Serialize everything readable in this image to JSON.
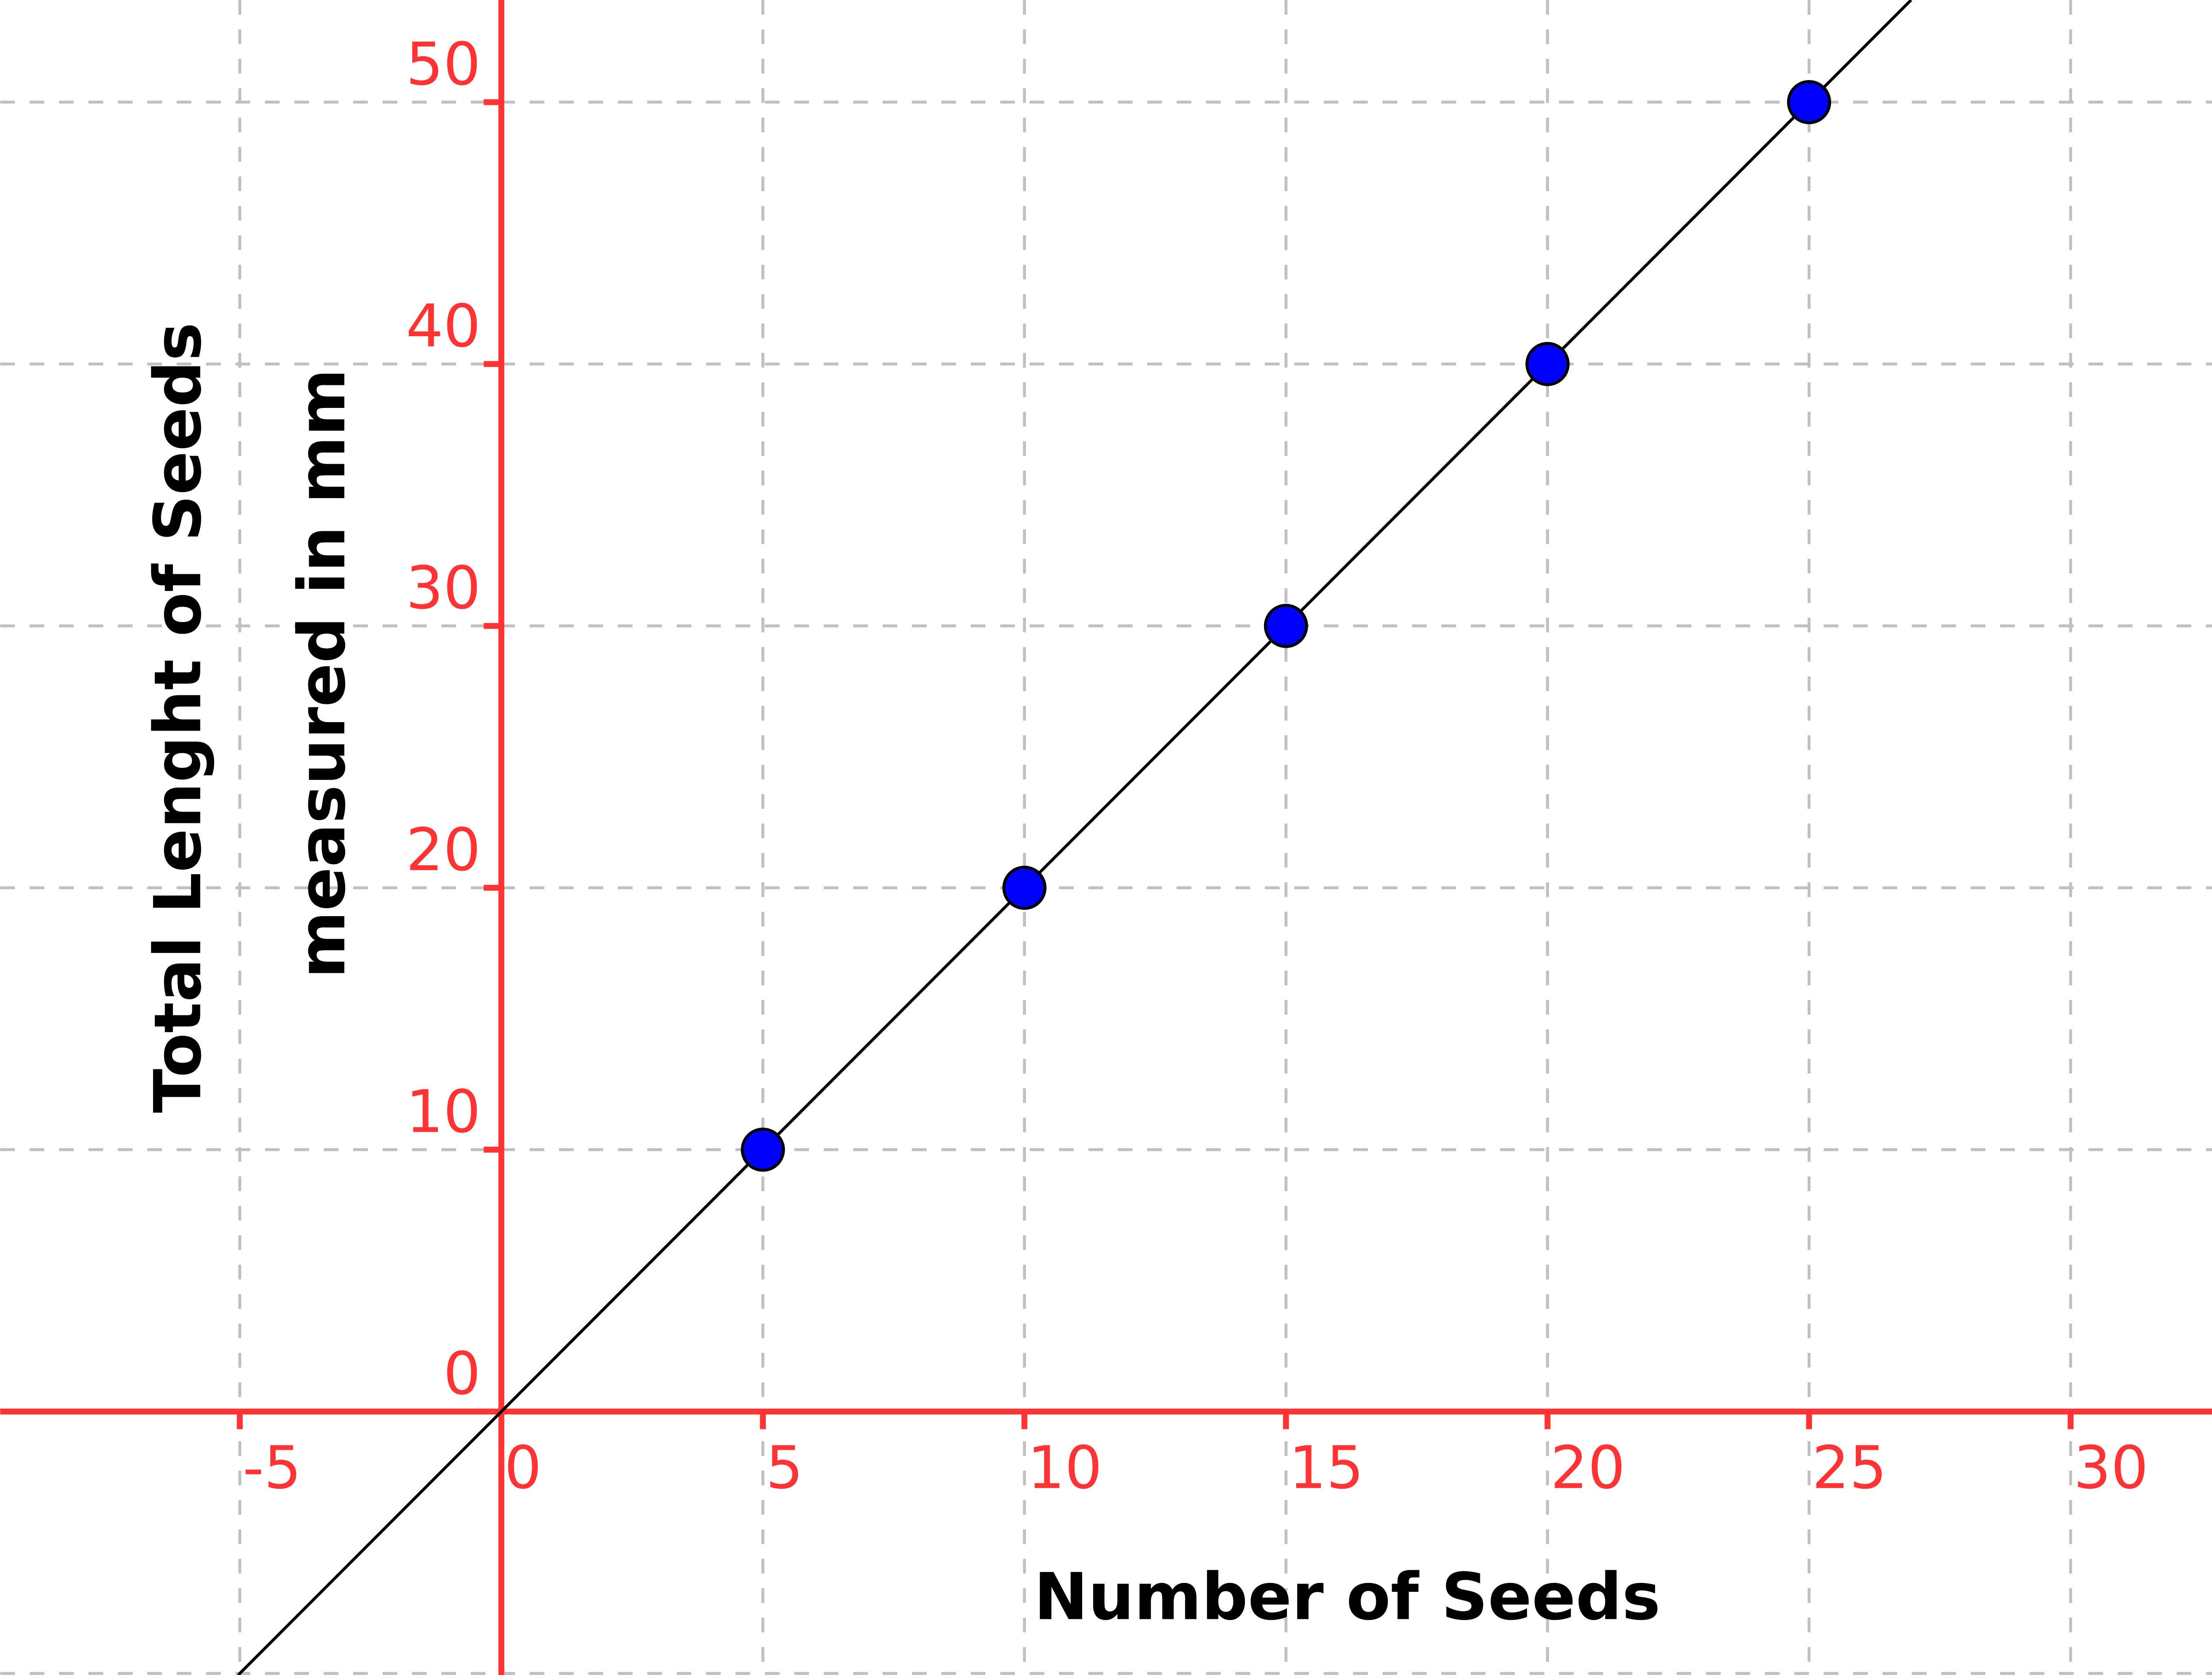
{
  "chart_data": {
    "type": "scatter",
    "title": "",
    "xlabel": "Number of Seeds",
    "ylabel_lines": [
      "Total Lenght of Seeds",
      "measured in mm"
    ],
    "xlim": [
      -9.58,
      34.5
    ],
    "ylim": [
      -10.06,
      53.9
    ],
    "x_ticks": [
      -5,
      0,
      5,
      10,
      15,
      20,
      25,
      30
    ],
    "y_ticks": [
      0,
      10,
      20,
      30,
      40,
      50
    ],
    "x_tick_labels": [
      "-5",
      "0",
      "5",
      "10",
      "15",
      "20",
      "25",
      "30"
    ],
    "y_tick_labels": [
      "0",
      "10",
      "20",
      "30",
      "40",
      "50"
    ],
    "grid": true,
    "grid_x": [
      -5,
      5,
      10,
      15,
      20,
      25,
      30
    ],
    "grid_y": [
      -10,
      10,
      20,
      30,
      40,
      50
    ],
    "points": [
      {
        "x": 5,
        "y": 10
      },
      {
        "x": 10,
        "y": 20
      },
      {
        "x": 15,
        "y": 30
      },
      {
        "x": 20,
        "y": 40
      },
      {
        "x": 25,
        "y": 50
      }
    ],
    "fit_line": {
      "slope": 2,
      "intercept": 0
    },
    "colors": {
      "axis": "#ff3333",
      "tick_labels": "#ff3333",
      "grid": "#c0c0c0",
      "points": "#0000ff",
      "point_outline": "#000000",
      "line": "#000000"
    }
  }
}
